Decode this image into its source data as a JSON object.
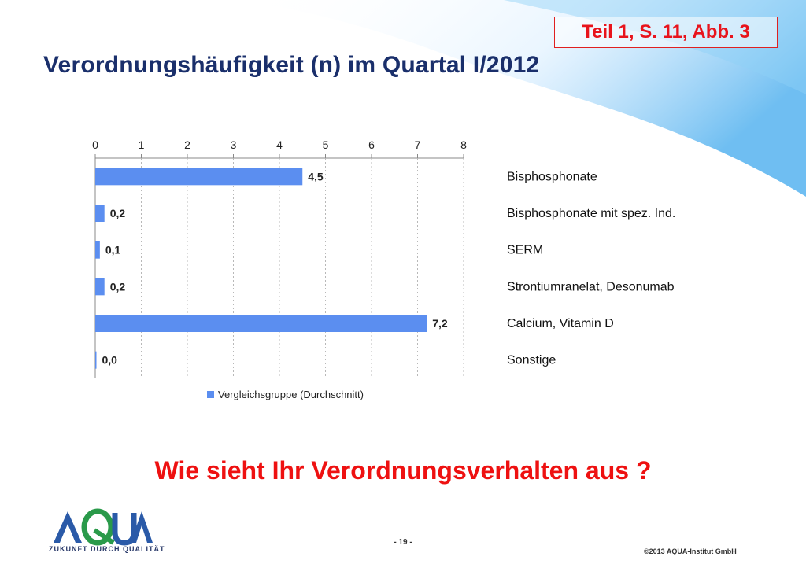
{
  "slide": {
    "reference": "Teil 1, S. 11, Abb. 3",
    "title": "Verordnungshäufigkeit (n) im Quartal I/2012",
    "question": "Wie sieht Ihr Verordnungsverhalten aus ?",
    "page_number": "- 19 -",
    "copyright": "©2013 AQUA-Institut GmbH",
    "logo_text": "AQUA",
    "tagline": "ZUKUNFT DURCH QUALITÄT"
  },
  "colors": {
    "bar": "#5b8ef0",
    "title": "#1a2f6b",
    "accent_red": "#e8141c",
    "logo_blue": "#2a5aa8",
    "logo_green": "#2a9a4a"
  },
  "chart_data": {
    "type": "bar",
    "orientation": "horizontal",
    "categories": [
      "Bisphosphonate",
      "Bisphosphonate mit spez. Ind.",
      "SERM",
      "Strontiumranelat, Desonumab",
      "Calcium, Vitamin D",
      "Sonstige"
    ],
    "series": [
      {
        "name": "Vergleichsgruppe (Durchschnitt)",
        "values": [
          4.5,
          0.2,
          0.1,
          0.2,
          7.2,
          0.0
        ],
        "labels": [
          "4,5",
          "0,2",
          "0,1",
          "0,2",
          "7,2",
          "0,0"
        ]
      }
    ],
    "xlim": [
      0,
      8
    ],
    "ticks": [
      "0",
      "1",
      "2",
      "3",
      "4",
      "5",
      "6",
      "7",
      "8"
    ],
    "axis_position": "top",
    "grid": "vertical dashed",
    "legend_position": "bottom"
  }
}
